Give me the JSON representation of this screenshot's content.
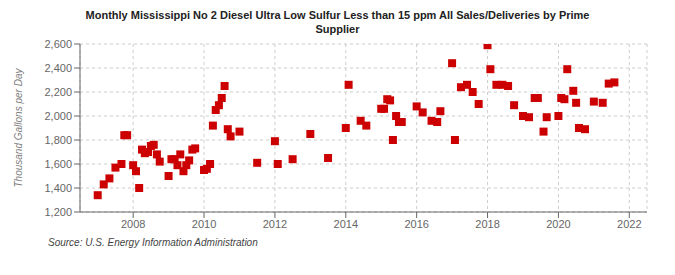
{
  "chart_data": {
    "type": "scatter",
    "title": "Monthly Mississippi No 2 Diesel Ultra Low Sulfur Less than 15 ppm All Sales/Deliveries by Prime\nSupplier",
    "ylabel": "Thousand Gallons per Day",
    "annotations": [
      "Source: U.S. Energy Information Administration"
    ],
    "color": "#cc0000",
    "marker": "square",
    "grid": true,
    "xlim": [
      2006.5,
      2022.5
    ],
    "xticks": [
      2008,
      2010,
      2012,
      2014,
      2016,
      2018,
      2020,
      2022
    ],
    "ylim": [
      1200,
      2600
    ],
    "yticks": [
      {
        "value": 1200,
        "label": "1,200"
      },
      {
        "value": 1400,
        "label": "1,400"
      },
      {
        "value": 1600,
        "label": "1,600"
      },
      {
        "value": 1800,
        "label": "1,800"
      },
      {
        "value": 2000,
        "label": "2,000"
      },
      {
        "value": 2200,
        "label": "2,200"
      },
      {
        "value": 2400,
        "label": "2,400"
      },
      {
        "value": 2600,
        "label": "2,600"
      }
    ],
    "x": [
      2007.0,
      2007.17,
      2007.33,
      2007.5,
      2007.67,
      2007.75,
      2007.83,
      2008.0,
      2008.08,
      2008.17,
      2008.25,
      2008.33,
      2008.42,
      2008.5,
      2008.58,
      2008.67,
      2008.75,
      2009.0,
      2009.08,
      2009.17,
      2009.25,
      2009.33,
      2009.42,
      2009.5,
      2009.58,
      2009.67,
      2009.75,
      2010.0,
      2010.08,
      2010.17,
      2010.25,
      2010.33,
      2010.42,
      2010.5,
      2010.58,
      2010.67,
      2010.75,
      2011.0,
      2011.5,
      2012.0,
      2012.08,
      2012.5,
      2013.0,
      2013.5,
      2014.0,
      2014.08,
      2014.42,
      2014.58,
      2015.0,
      2015.08,
      2015.17,
      2015.25,
      2015.33,
      2015.42,
      2015.5,
      2015.58,
      2016.0,
      2016.17,
      2016.42,
      2016.58,
      2016.67,
      2017.0,
      2017.08,
      2017.25,
      2017.42,
      2017.58,
      2017.75,
      2018.0,
      2018.08,
      2018.25,
      2018.42,
      2018.58,
      2018.75,
      2019.0,
      2019.17,
      2019.33,
      2019.42,
      2019.58,
      2019.67,
      2020.0,
      2020.08,
      2020.17,
      2020.25,
      2020.42,
      2020.5,
      2020.58,
      2020.75,
      2021.0,
      2021.25,
      2021.42,
      2021.58
    ],
    "values": [
      1340,
      1430,
      1480,
      1570,
      1600,
      1840,
      1840,
      1590,
      1540,
      1400,
      1720,
      1690,
      1700,
      1750,
      1760,
      1680,
      1620,
      1500,
      1640,
      1640,
      1590,
      1680,
      1540,
      1590,
      1630,
      1720,
      1730,
      1550,
      1560,
      1600,
      1920,
      2050,
      2090,
      2150,
      2250,
      1890,
      1830,
      1870,
      1610,
      1790,
      1600,
      1640,
      1850,
      1650,
      1900,
      2260,
      1960,
      1920,
      2060,
      2060,
      2140,
      2130,
      1800,
      2000,
      1950,
      1950,
      2080,
      2030,
      1960,
      1950,
      2040,
      2440,
      1800,
      2240,
      2260,
      2200,
      2100,
      2590,
      2390,
      2260,
      2260,
      2250,
      2090,
      2000,
      1990,
      2150,
      2150,
      1870,
      1990,
      2000,
      2150,
      2140,
      2390,
      2210,
      2110,
      1900,
      1890,
      2120,
      2110,
      2270,
      2280
    ]
  }
}
